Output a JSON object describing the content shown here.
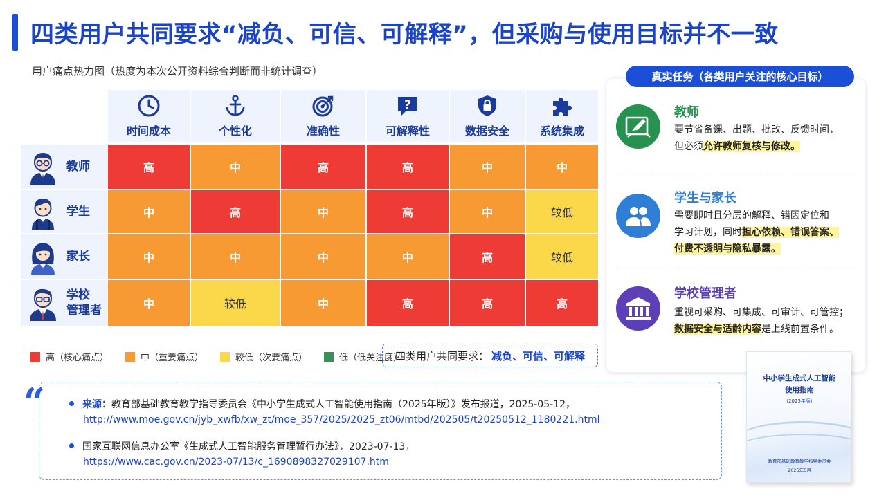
{
  "title": "四类用户共同要求“减负、可信、可解释”，但采购与使用目标并不一致",
  "heatmap": {
    "caption": "用户痛点热力图（热度为本次公开资料综合判断而非统计调查）",
    "columns": [
      {
        "label": "时间成本",
        "icon": "clock-icon"
      },
      {
        "label": "个性化",
        "icon": "anchor-icon"
      },
      {
        "label": "准确性",
        "icon": "target-icon"
      },
      {
        "label": "可解释性",
        "icon": "question-bubble-icon"
      },
      {
        "label": "数据安全",
        "icon": "shield-lock-icon"
      },
      {
        "label": "系统集成",
        "icon": "puzzle-icon"
      }
    ],
    "rows": [
      {
        "label": "教师",
        "avatar": "teacher-avatar-icon",
        "cells": [
          {
            "text": "高",
            "level": "high"
          },
          {
            "text": "中",
            "level": "mid"
          },
          {
            "text": "高",
            "level": "high"
          },
          {
            "text": "高",
            "level": "high"
          },
          {
            "text": "中",
            "level": "mid"
          },
          {
            "text": "中",
            "level": "mid"
          }
        ]
      },
      {
        "label": "学生",
        "avatar": "student-avatar-icon",
        "cells": [
          {
            "text": "中",
            "level": "mid"
          },
          {
            "text": "高",
            "level": "high"
          },
          {
            "text": "中",
            "level": "mid"
          },
          {
            "text": "高",
            "level": "high"
          },
          {
            "text": "中",
            "level": "mid"
          },
          {
            "text": "较低",
            "level": "low"
          }
        ]
      },
      {
        "label": "家长",
        "avatar": "parent-avatar-icon",
        "cells": [
          {
            "text": "中",
            "level": "mid"
          },
          {
            "text": "中",
            "level": "mid"
          },
          {
            "text": "中",
            "level": "mid"
          },
          {
            "text": "中",
            "level": "mid"
          },
          {
            "text": "高",
            "level": "high"
          },
          {
            "text": "较低",
            "level": "low"
          }
        ]
      },
      {
        "label_line1": "学校",
        "label_line2": "管理者",
        "avatar": "admin-avatar-icon",
        "cells": [
          {
            "text": "中",
            "level": "mid"
          },
          {
            "text": "较低",
            "level": "low"
          },
          {
            "text": "中",
            "level": "mid"
          },
          {
            "text": "高",
            "level": "high"
          },
          {
            "text": "高",
            "level": "high"
          },
          {
            "text": "高",
            "level": "high"
          }
        ]
      }
    ],
    "colors": {
      "high": "#ef3b36",
      "mid": "#f79a33",
      "low": "#fbd84a",
      "lowest": "#3a8f5c"
    }
  },
  "legend": {
    "high": "高（核心痛点）",
    "mid": "中（重要痛点）",
    "low": "较低（次要痛点）",
    "lowest": "低（低关注度）"
  },
  "requirement": {
    "prefix": "四类用户共同要求：",
    "emphasis": "减负、可信、可解释"
  },
  "panel": {
    "tag": "真实任务（各类用户关注的核心目标）",
    "roles": [
      {
        "name": "教师",
        "icon": "whiteboard-pen-icon",
        "color": "#27914f",
        "line1": "要节省备课、出题、批改、反馈时间，",
        "line2_pre": "但必须",
        "line2_hl": "允许教师复核与修改。",
        "line2_post": ""
      },
      {
        "name": "学生与家长",
        "icon": "people-icon",
        "color": "#2f7fd6",
        "line1": "需要即时且分层的解释、错因定位和",
        "line2_pre": "学习计划，同时",
        "line2_hl": "担心依赖、错误答案、",
        "line3_hl": "付费不透明与隐私暴露。"
      },
      {
        "name": "学校管理者",
        "icon": "institution-icon",
        "color": "#5d3fb8",
        "line1": "重视可采购、可集成、可审计、可管控；",
        "line2_hl": "数据安全与适龄内容",
        "line2_post": "是上线前置条件。"
      }
    ]
  },
  "sources": [
    {
      "label": "来源：",
      "text": "教育部基础教育教学指导委员会《中小学生成式人工智能使用指南（2025年版）》发布报道，2025-05-12，",
      "url": "http://www.moe.gov.cn/jyb_xwfb/xw_zt/moe_357/2025/2025_zt06/mtbd/202505/t20250512_1180221.html"
    },
    {
      "label": "",
      "text": "国家互联网信息办公室《生成式人工智能服务管理暂行办法》，2023-07-13，",
      "url": "https://www.cac.gov.cn/2023-07/13/c_1690898327029107.htm"
    }
  ],
  "booklet": {
    "title_line1": "中小学生成式人工智能",
    "title_line2": "使用指南",
    "edition": "（2025年版）",
    "publisher": "教育部基础教育教学指导委员会",
    "date": "2025年5月"
  }
}
